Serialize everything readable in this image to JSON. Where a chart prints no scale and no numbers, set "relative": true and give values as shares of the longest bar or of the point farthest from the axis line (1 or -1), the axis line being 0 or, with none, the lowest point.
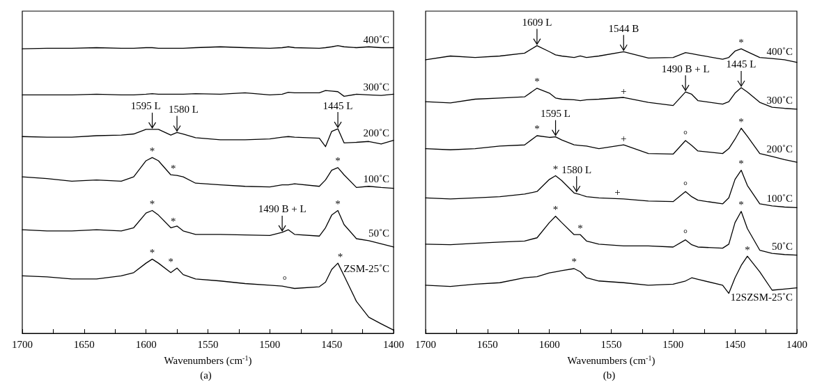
{
  "chart_data": [
    {
      "type": "line",
      "title": "(a)",
      "xlabel": "Wavenumbers (cm$^{-1}$)",
      "relative": true,
      "xlim": [
        1700,
        1400
      ],
      "xticks": [
        1700,
        {
          "value": 1675,
          "label": null
        },
        1650,
        {
          "value": 1625,
          "label": null
        },
        1600,
        {
          "value": 1575,
          "label": null
        },
        1550,
        {
          "value": 1525,
          "label": null
        },
        1500,
        {
          "value": 1475,
          "label": null
        },
        1450,
        {
          "value": 1425,
          "label": null
        },
        1400
      ],
      "grid": false,
      "legend": false,
      "marker": "none",
      "line_style": "solid",
      "x": [
        1700,
        1680,
        1660,
        1640,
        1620,
        1610,
        1600,
        1595,
        1590,
        1580,
        1575,
        1570,
        1560,
        1540,
        1520,
        1500,
        1490,
        1485,
        1480,
        1460,
        1455,
        1450,
        1445,
        1440,
        1430,
        1420,
        1410,
        1400
      ],
      "series": [
        {
          "name": "400˚C",
          "color": "#000000",
          "values": [
            0.989,
            0.991,
            0.991,
            0.993,
            0.991,
            0.991,
            0.993,
            0.993,
            0.991,
            0.991,
            0.991,
            0.991,
            0.993,
            0.996,
            0.993,
            0.991,
            0.993,
            0.996,
            0.993,
            0.991,
            0.993,
            0.996,
            1,
            0.996,
            0.993,
            0.996,
            0.993,
            0.993
          ]
        },
        {
          "name": "300˚C",
          "color": "#000000",
          "values": [
            0.829,
            0.829,
            0.829,
            0.831,
            0.829,
            0.829,
            0.831,
            0.833,
            0.831,
            0.831,
            0.831,
            0.831,
            0.833,
            0.831,
            0.836,
            0.829,
            0.831,
            0.838,
            0.836,
            0.836,
            0.844,
            0.842,
            0.84,
            0.824,
            0.831,
            0.829,
            0.827,
            0.831
          ]
        },
        {
          "name": "200˚C",
          "color": "#000000",
          "values": [
            0.684,
            0.682,
            0.682,
            0.687,
            0.689,
            0.693,
            0.709,
            0.709,
            0.709,
            0.689,
            0.698,
            0.693,
            0.68,
            0.673,
            0.673,
            0.676,
            0.682,
            0.684,
            0.682,
            0.678,
            0.649,
            0.702,
            0.711,
            0.662,
            0.664,
            0.667,
            0.658,
            0.671
          ]
        },
        {
          "name": "100˚C",
          "color": "#000000",
          "values": [
            0.544,
            0.538,
            0.529,
            0.533,
            0.529,
            0.544,
            0.6,
            0.611,
            0.6,
            0.551,
            0.549,
            0.544,
            0.522,
            0.516,
            0.511,
            0.509,
            0.516,
            0.516,
            0.52,
            0.511,
            0.533,
            0.567,
            0.576,
            0.551,
            0.507,
            0.511,
            0.507,
            0.504
          ]
        },
        {
          "name": "50˚C",
          "color": "#000000",
          "values": [
            0.36,
            0.356,
            0.356,
            0.36,
            0.356,
            0.367,
            0.418,
            0.427,
            0.411,
            0.367,
            0.373,
            0.356,
            0.344,
            0.344,
            0.342,
            0.34,
            0.351,
            0.36,
            0.344,
            0.338,
            0.367,
            0.411,
            0.427,
            0.378,
            0.329,
            0.322,
            0.311,
            0.3
          ]
        },
        {
          "name": "ZSM-25˚C",
          "color": "#000000",
          "values": [
            0.2,
            0.196,
            0.189,
            0.189,
            0.2,
            0.211,
            0.244,
            0.258,
            0.244,
            0.211,
            0.227,
            0.204,
            0.189,
            0.182,
            0.173,
            0.167,
            0.164,
            0.16,
            0.156,
            0.162,
            0.178,
            0.222,
            0.244,
            0.2,
            0.111,
            0.056,
            0.033,
            0.011
          ]
        }
      ],
      "annotations": [
        {
          "text": "1595 L",
          "x": 1595,
          "y": 0.709
        },
        {
          "text": "1580 L",
          "x": 1575,
          "y": 0.698
        },
        {
          "text": "1445 L",
          "x": 1445,
          "y": 0.711
        },
        {
          "text": "1490 B + L",
          "x": 1490,
          "y": 0.351
        },
        {
          "text": "*",
          "x": 1595,
          "y": 0.611
        },
        {
          "text": "*",
          "x": 1578,
          "y": 0.551
        },
        {
          "text": "*",
          "x": 1445,
          "y": 0.576
        },
        {
          "text": "*",
          "x": 1595,
          "y": 0.427
        },
        {
          "text": "*",
          "x": 1578,
          "y": 0.367
        },
        {
          "text": "*",
          "x": 1445,
          "y": 0.427
        },
        {
          "text": "*",
          "x": 1595,
          "y": 0.258
        },
        {
          "text": "*",
          "x": 1580,
          "y": 0.227
        },
        {
          "text": "°",
          "x": 1488,
          "y": 0.164
        },
        {
          "text": "*",
          "x": 1443,
          "y": 0.244
        }
      ]
    },
    {
      "type": "line",
      "title": "(b)",
      "xlabel": "Wavenumbers (cm$^{-1}$)",
      "relative": true,
      "xlim": [
        1700,
        1400
      ],
      "xticks": [
        1700,
        {
          "value": 1675,
          "label": null
        },
        1650,
        {
          "value": 1625,
          "label": null
        },
        1600,
        {
          "value": 1575,
          "label": null
        },
        1550,
        {
          "value": 1525,
          "label": null
        },
        1500,
        {
          "value": 1475,
          "label": null
        },
        1450,
        {
          "value": 1425,
          "label": null
        },
        1400
      ],
      "grid": false,
      "legend": false,
      "marker": "none",
      "line_style": "solid",
      "x": [
        1700,
        1680,
        1660,
        1640,
        1620,
        1610,
        1600,
        1595,
        1590,
        1580,
        1575,
        1570,
        1560,
        1540,
        1520,
        1500,
        1490,
        1485,
        1480,
        1460,
        1455,
        1450,
        1445,
        1440,
        1430,
        1420,
        1410,
        1400
      ],
      "series": [
        {
          "name": "400˚C",
          "color": "#000000",
          "values": [
            0.951,
            0.964,
            0.959,
            0.964,
            0.974,
            1,
            0.979,
            0.968,
            0.964,
            0.959,
            0.964,
            0.959,
            0.964,
            0.979,
            0.957,
            0.959,
            0.976,
            0.972,
            0.968,
            0.953,
            0.959,
            0.981,
            0.989,
            0.979,
            0.959,
            0.955,
            0.951,
            0.942
          ]
        },
        {
          "name": "300˚C",
          "color": "#000000",
          "values": [
            0.805,
            0.801,
            0.814,
            0.818,
            0.822,
            0.852,
            0.835,
            0.818,
            0.814,
            0.812,
            0.809,
            0.812,
            0.814,
            0.82,
            0.803,
            0.792,
            0.839,
            0.831,
            0.809,
            0.797,
            0.805,
            0.835,
            0.854,
            0.839,
            0.803,
            0.786,
            0.782,
            0.779
          ]
        },
        {
          "name": "200˚C",
          "color": "#000000",
          "values": [
            0.642,
            0.638,
            0.642,
            0.651,
            0.655,
            0.687,
            0.681,
            0.683,
            0.672,
            0.655,
            0.653,
            0.651,
            0.642,
            0.655,
            0.625,
            0.623,
            0.67,
            0.653,
            0.634,
            0.625,
            0.642,
            0.675,
            0.713,
            0.685,
            0.625,
            0.615,
            0.604,
            0.595
          ]
        },
        {
          "name": "100˚C",
          "color": "#000000",
          "values": [
            0.471,
            0.467,
            0.471,
            0.475,
            0.484,
            0.493,
            0.535,
            0.548,
            0.531,
            0.488,
            0.482,
            0.475,
            0.471,
            0.467,
            0.46,
            0.458,
            0.493,
            0.475,
            0.463,
            0.45,
            0.471,
            0.535,
            0.567,
            0.514,
            0.45,
            0.443,
            0.439,
            0.437
          ]
        },
        {
          "name": "50˚C",
          "color": "#000000",
          "values": [
            0.31,
            0.308,
            0.313,
            0.317,
            0.321,
            0.332,
            0.385,
            0.407,
            0.385,
            0.343,
            0.343,
            0.321,
            0.31,
            0.304,
            0.304,
            0.3,
            0.325,
            0.308,
            0.3,
            0.296,
            0.31,
            0.385,
            0.424,
            0.364,
            0.289,
            0.278,
            0.274,
            0.272
          ]
        },
        {
          "name": "12SZSM-25˚C",
          "color": "#000000",
          "values": [
            0.167,
            0.163,
            0.171,
            0.176,
            0.193,
            0.197,
            0.21,
            0.214,
            0.218,
            0.225,
            0.214,
            0.193,
            0.182,
            0.176,
            0.167,
            0.171,
            0.182,
            0.193,
            0.188,
            0.167,
            0.139,
            0.193,
            0.236,
            0.268,
            0.214,
            0.15,
            0.154,
            0.158
          ]
        }
      ],
      "annotations": [
        {
          "text": "1609 L",
          "x": 1610,
          "y": 1
        },
        {
          "text": "1544 B",
          "x": 1540,
          "y": 0.979
        },
        {
          "text": "1490 B + L",
          "x": 1490,
          "y": 0.839
        },
        {
          "text": "1445 L",
          "x": 1445,
          "y": 0.854
        },
        {
          "text": "1595 L",
          "x": 1595,
          "y": 0.683
        },
        {
          "text": "1580 L",
          "x": 1578,
          "y": 0.488
        },
        {
          "text": "*",
          "x": 1445,
          "y": 0.989
        },
        {
          "text": "*",
          "x": 1610,
          "y": 0.852
        },
        {
          "text": "+",
          "x": 1540,
          "y": 0.82
        },
        {
          "text": "*",
          "x": 1610,
          "y": 0.687
        },
        {
          "text": "+",
          "x": 1540,
          "y": 0.655
        },
        {
          "text": "°",
          "x": 1490,
          "y": 0.67
        },
        {
          "text": "*",
          "x": 1445,
          "y": 0.713
        },
        {
          "text": "*",
          "x": 1595,
          "y": 0.548
        },
        {
          "text": "+",
          "x": 1545,
          "y": 0.467
        },
        {
          "text": "°",
          "x": 1490,
          "y": 0.493
        },
        {
          "text": "*",
          "x": 1445,
          "y": 0.567
        },
        {
          "text": "*",
          "x": 1595,
          "y": 0.407
        },
        {
          "text": "*",
          "x": 1575,
          "y": 0.343
        },
        {
          "text": "°",
          "x": 1490,
          "y": 0.325
        },
        {
          "text": "*",
          "x": 1445,
          "y": 0.424
        },
        {
          "text": "*",
          "x": 1580,
          "y": 0.225
        },
        {
          "text": "*",
          "x": 1440,
          "y": 0.268
        }
      ]
    }
  ]
}
